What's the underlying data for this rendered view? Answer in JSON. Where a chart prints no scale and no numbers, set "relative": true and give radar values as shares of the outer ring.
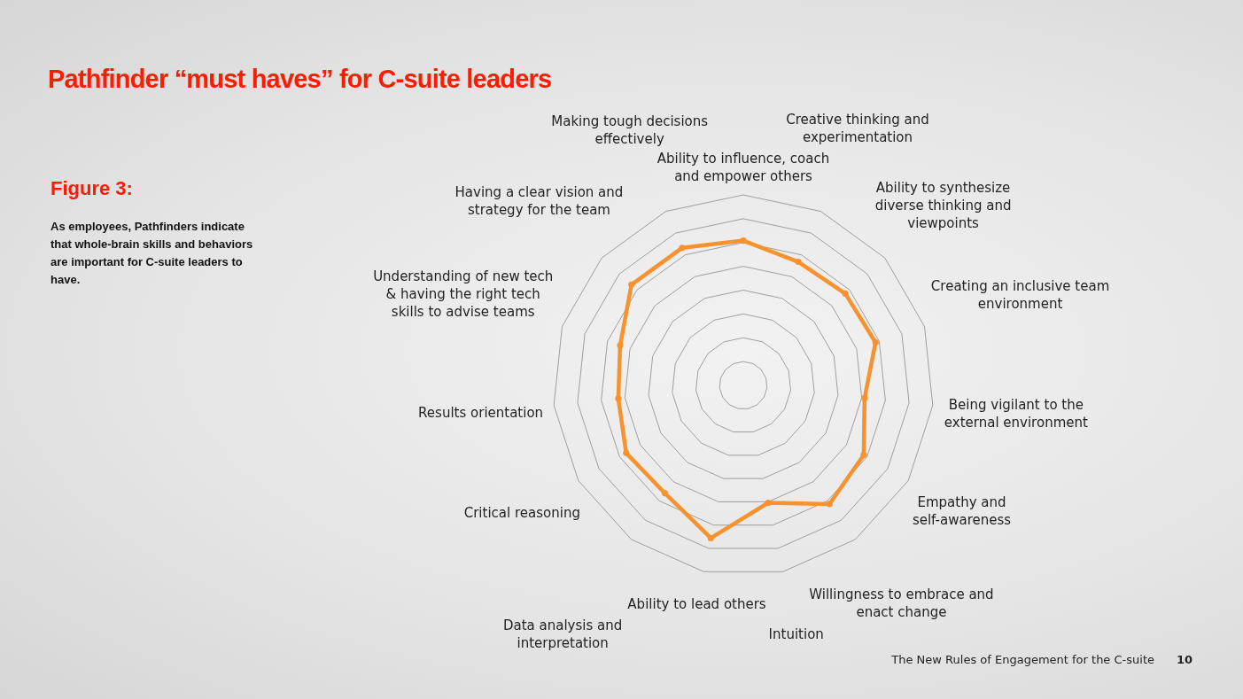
{
  "chart_data": {
    "type": "radar",
    "title": "Pathfinder “must haves” for C-suite leaders",
    "subtitle": "Figure 3:",
    "annotations": [
      "As employees, Pathfinders indicate that whole-brain skills and behaviors are important for C-suite leaders to have.",
      "The New Rules of Engagement for the C-suite",
      "10"
    ],
    "categories": [
      "Ability to influence, coach and empower others",
      "Creative thinking and experimentation",
      "Ability to synthesize diverse thinking and viewpoints",
      "Creating an inclusive team environment",
      "Being vigilant to the external environment",
      "Empathy and self-awareness",
      "Willingness to embrace and enact change",
      "Intuition",
      "Ability to lead others",
      "Data analysis and interpretation",
      "Critical reasoning",
      "Results orientation",
      "Understanding of new tech & having the right tech skills to advise teams",
      "Having a clear vision and strategy for the team",
      "Making tough decisions effectively"
    ],
    "relative": true,
    "grid": true,
    "marker": "circle",
    "series": [
      {
        "color": "#f7922e",
        "values": [
          0.76,
          0.71,
          0.72,
          0.73,
          0.64,
          0.73,
          0.77,
          0.63,
          0.82,
          0.7,
          0.71,
          0.66,
          0.68,
          0.79,
          0.79
        ]
      }
    ]
  }
}
